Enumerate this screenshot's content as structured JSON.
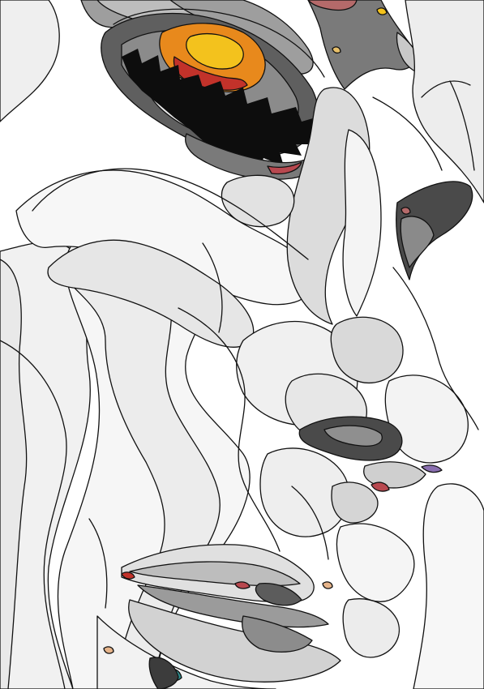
{
  "artwork": {
    "subject": "vector-portrait-face",
    "palette": {
      "background": "#ffffff",
      "light_gray": "#ededed",
      "mid_gray": "#cfcfcf",
      "gray": "#a9a9a9",
      "dark_gray": "#6e6e6e",
      "charcoal": "#4a4a4a",
      "lash_black": "#0d0d0d",
      "iris_orange": "#e8891c",
      "iris_yellow": "#f3c21d",
      "iris_red": "#c2322a",
      "accent_rose": "#b8484f",
      "accent_teal": "#2e8c8c",
      "accent_purple": "#8a6fb0"
    }
  }
}
